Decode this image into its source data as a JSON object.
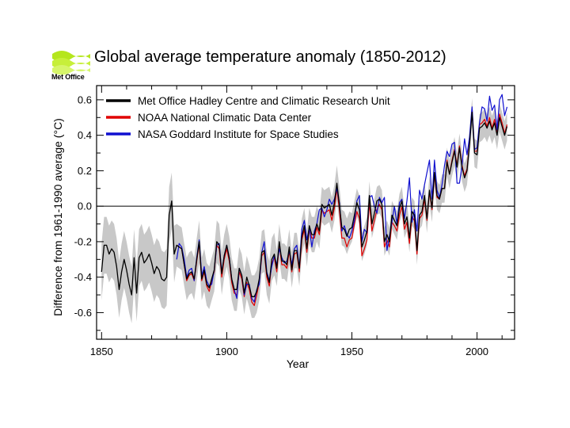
{
  "header": {
    "logo_text": "Met Office",
    "title": "Global average temperature anomaly (1850-2012)"
  },
  "colors": {
    "hadcrut": "#000000",
    "noaa": "#e00000",
    "nasa": "#1010d0",
    "uncertainty": "#c8c8c8",
    "logo": "#b5e61d"
  },
  "chart_data": {
    "type": "line",
    "title": "Global average temperature anomaly (1850-2012)",
    "xlabel": "Year",
    "ylabel": "Difference from 1961-1990 average (°C)",
    "xlim": [
      1848,
      2015
    ],
    "ylim": [
      -0.75,
      0.68
    ],
    "xticks": [
      1850,
      1900,
      1950,
      2000
    ],
    "yticks": [
      -0.6,
      -0.4,
      -0.2,
      0.0,
      0.2,
      0.4,
      0.6
    ],
    "ytick_labels": [
      "-0.6",
      "-0.4",
      "-0.2",
      "0.0",
      "0.2",
      "0.4",
      "0.6"
    ],
    "zero_line": true,
    "grid": false,
    "legend": "top-left",
    "x_start": 1850,
    "series": [
      {
        "name": "Met Office Hadley Centre and Climatic Research Unit",
        "key": "hadcrut",
        "start": 1850,
        "values": [
          -0.37,
          -0.22,
          -0.22,
          -0.27,
          -0.24,
          -0.26,
          -0.34,
          -0.47,
          -0.37,
          -0.3,
          -0.36,
          -0.44,
          -0.5,
          -0.29,
          -0.49,
          -0.29,
          -0.26,
          -0.32,
          -0.3,
          -0.27,
          -0.32,
          -0.38,
          -0.34,
          -0.36,
          -0.41,
          -0.42,
          -0.4,
          -0.05,
          0.03,
          -0.27,
          -0.22,
          -0.23,
          -0.24,
          -0.33,
          -0.41,
          -0.38,
          -0.37,
          -0.41,
          -0.3,
          -0.2,
          -0.41,
          -0.36,
          -0.44,
          -0.46,
          -0.41,
          -0.36,
          -0.2,
          -0.22,
          -0.38,
          -0.28,
          -0.22,
          -0.29,
          -0.41,
          -0.47,
          -0.47,
          -0.35,
          -0.39,
          -0.49,
          -0.4,
          -0.45,
          -0.51,
          -0.51,
          -0.48,
          -0.41,
          -0.26,
          -0.25,
          -0.38,
          -0.43,
          -0.3,
          -0.27,
          -0.35,
          -0.2,
          -0.31,
          -0.31,
          -0.33,
          -0.23,
          -0.36,
          -0.25,
          -0.25,
          -0.35,
          -0.17,
          -0.11,
          -0.24,
          -0.11,
          -0.16,
          -0.16,
          -0.1,
          -0.14,
          0.01,
          -0.01,
          0.0,
          0.01,
          -0.05,
          0.02,
          0.13,
          0.01,
          -0.12,
          -0.13,
          -0.17,
          -0.13,
          -0.12,
          -0.05,
          0.02,
          -0.02,
          -0.23,
          -0.19,
          -0.14,
          0.06,
          -0.1,
          -0.04,
          0.03,
          0.04,
          0.01,
          -0.2,
          -0.16,
          -0.2,
          -0.05,
          -0.08,
          -0.11,
          -0.01,
          0.03,
          -0.1,
          -0.06,
          -0.18,
          -0.03,
          -0.05,
          -0.25,
          -0.05,
          -0.03,
          0.06,
          -0.07,
          0.09,
          -0.01,
          0.19,
          0.06,
          0.04,
          0.1,
          0.1,
          0.25,
          0.18,
          0.25,
          0.31,
          0.22,
          0.33,
          0.22,
          0.16,
          0.2,
          0.35,
          0.53,
          0.3,
          0.29,
          0.44,
          0.45,
          0.47,
          0.44,
          0.48,
          0.43,
          0.47,
          0.4,
          0.5,
          0.45,
          0.4,
          0.45
        ]
      },
      {
        "name": "NOAA National Climatic Data Center",
        "key": "noaa",
        "start": 1880,
        "values": [
          -0.22,
          -0.23,
          -0.24,
          -0.33,
          -0.42,
          -0.39,
          -0.38,
          -0.42,
          -0.31,
          -0.21,
          -0.42,
          -0.37,
          -0.45,
          -0.48,
          -0.42,
          -0.37,
          -0.22,
          -0.24,
          -0.4,
          -0.3,
          -0.24,
          -0.31,
          -0.43,
          -0.49,
          -0.5,
          -0.37,
          -0.41,
          -0.51,
          -0.43,
          -0.47,
          -0.54,
          -0.56,
          -0.5,
          -0.43,
          -0.28,
          -0.26,
          -0.4,
          -0.45,
          -0.32,
          -0.29,
          -0.37,
          -0.22,
          -0.33,
          -0.33,
          -0.35,
          -0.25,
          -0.37,
          -0.27,
          -0.26,
          -0.37,
          -0.19,
          -0.13,
          -0.26,
          -0.13,
          -0.18,
          -0.18,
          -0.12,
          -0.16,
          -0.02,
          -0.04,
          -0.03,
          -0.02,
          -0.08,
          -0.01,
          0.1,
          -0.02,
          -0.18,
          -0.18,
          -0.23,
          -0.19,
          -0.18,
          -0.1,
          -0.03,
          -0.07,
          -0.28,
          -0.24,
          -0.19,
          0.02,
          -0.14,
          -0.08,
          -0.02,
          0.01,
          -0.02,
          -0.23,
          -0.19,
          -0.23,
          -0.09,
          -0.11,
          -0.14,
          -0.05,
          0.0,
          -0.13,
          -0.09,
          -0.21,
          -0.06,
          -0.08,
          -0.27,
          -0.07,
          -0.05,
          0.04,
          -0.08,
          0.08,
          -0.02,
          0.18,
          0.05,
          0.04,
          0.1,
          0.1,
          0.26,
          0.18,
          0.26,
          0.32,
          0.23,
          0.34,
          0.23,
          0.17,
          0.21,
          0.36,
          0.55,
          0.31,
          0.31,
          0.46,
          0.47,
          0.49,
          0.45,
          0.5,
          0.44,
          0.49,
          0.42,
          0.52,
          0.47,
          0.41,
          0.46
        ]
      },
      {
        "name": "NASA Goddard Institute for Space Studies",
        "key": "nasa",
        "start": 1880,
        "values": [
          -0.3,
          -0.21,
          -0.23,
          -0.3,
          -0.4,
          -0.36,
          -0.35,
          -0.42,
          -0.29,
          -0.19,
          -0.39,
          -0.34,
          -0.42,
          -0.45,
          -0.44,
          -0.36,
          -0.22,
          -0.21,
          -0.37,
          -0.28,
          -0.22,
          -0.29,
          -0.41,
          -0.47,
          -0.52,
          -0.35,
          -0.39,
          -0.5,
          -0.44,
          -0.44,
          -0.52,
          -0.54,
          -0.47,
          -0.44,
          -0.26,
          -0.2,
          -0.37,
          -0.42,
          -0.34,
          -0.28,
          -0.33,
          -0.24,
          -0.29,
          -0.32,
          -0.31,
          -0.25,
          -0.33,
          -0.24,
          -0.22,
          -0.35,
          -0.13,
          -0.08,
          -0.19,
          -0.12,
          -0.23,
          -0.14,
          -0.1,
          -0.02,
          -0.01,
          -0.06,
          -0.02,
          0.04,
          0.01,
          0.04,
          0.1,
          0.02,
          -0.14,
          -0.11,
          -0.16,
          -0.18,
          -0.14,
          -0.08,
          0.03,
          0.06,
          -0.2,
          -0.13,
          -0.15,
          0.05,
          0.06,
          0.0,
          -0.04,
          0.05,
          0.02,
          0.05,
          -0.25,
          -0.17,
          -0.09,
          0.0,
          -0.1,
          0.02,
          0.04,
          -0.07,
          0.03,
          0.16,
          -0.09,
          -0.02,
          -0.14,
          0.09,
          0.04,
          0.12,
          0.19,
          0.26,
          0.04,
          0.26,
          0.09,
          0.05,
          0.12,
          0.23,
          0.31,
          0.28,
          0.35,
          0.36,
          0.13,
          0.13,
          0.23,
          0.38,
          0.29,
          0.39,
          0.56,
          0.32,
          0.33,
          0.47,
          0.56,
          0.55,
          0.48,
          0.62,
          0.54,
          0.57,
          0.43,
          0.6,
          0.63,
          0.51,
          0.56
        ]
      }
    ]
  }
}
